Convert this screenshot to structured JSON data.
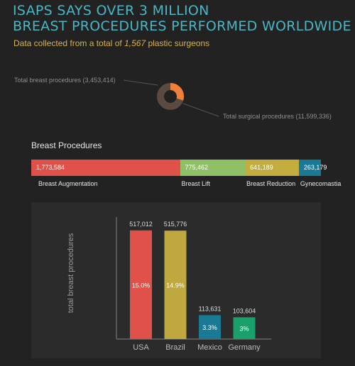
{
  "header": {
    "title_line1": "ISAPS SAYS OVER 3 MILLION",
    "title_line2": "BREAST PROCEDURES PERFORMED WORLDWIDE",
    "subtitle_prefix": "Data collected from a total of ",
    "subtitle_number": "1,567",
    "subtitle_suffix": " plastic surgeons"
  },
  "donut": {
    "breast_label": "Total breast procedures (3,453,414)",
    "surgical_label": "Total surgical procedures (11,599,336)",
    "breast_total": 3453414,
    "surgical_total": 11599336,
    "breast_color": "#f07f3c",
    "other_color": "#5a4a40"
  },
  "breast_procedures": {
    "title": "Breast Procedures",
    "segments": [
      {
        "name": "Breast Augmentation",
        "value_label": "1,773,584",
        "value": 1773584,
        "color": "#e0514a"
      },
      {
        "name": "Breast Lift",
        "value_label": "775,462",
        "value": 775462,
        "color": "#8fc066"
      },
      {
        "name": "Breast Reduction",
        "value_label": "641,189",
        "value": 641189,
        "color": "#c2ad3e"
      },
      {
        "name": "Gynecomastia",
        "value_label": "263,179",
        "value": 263179,
        "color": "#1a7a96"
      }
    ]
  },
  "chart_data": {
    "type": "bar",
    "title": "",
    "ylabel": "total breast procedures",
    "xlabel": "",
    "ylim": [
      0,
      540000
    ],
    "categories": [
      "USA",
      "Brazil",
      "Mexico",
      "Germany"
    ],
    "values": [
      517012,
      515776,
      113631,
      103604
    ],
    "value_labels": [
      "517,012",
      "515,776",
      "113,631",
      "103,604"
    ],
    "percent_labels": [
      "15.0%",
      "14.9%",
      "3.3%",
      "3%"
    ],
    "colors": [
      "#e0514a",
      "#bfa83e",
      "#1a7a96",
      "#1aa06a"
    ]
  }
}
